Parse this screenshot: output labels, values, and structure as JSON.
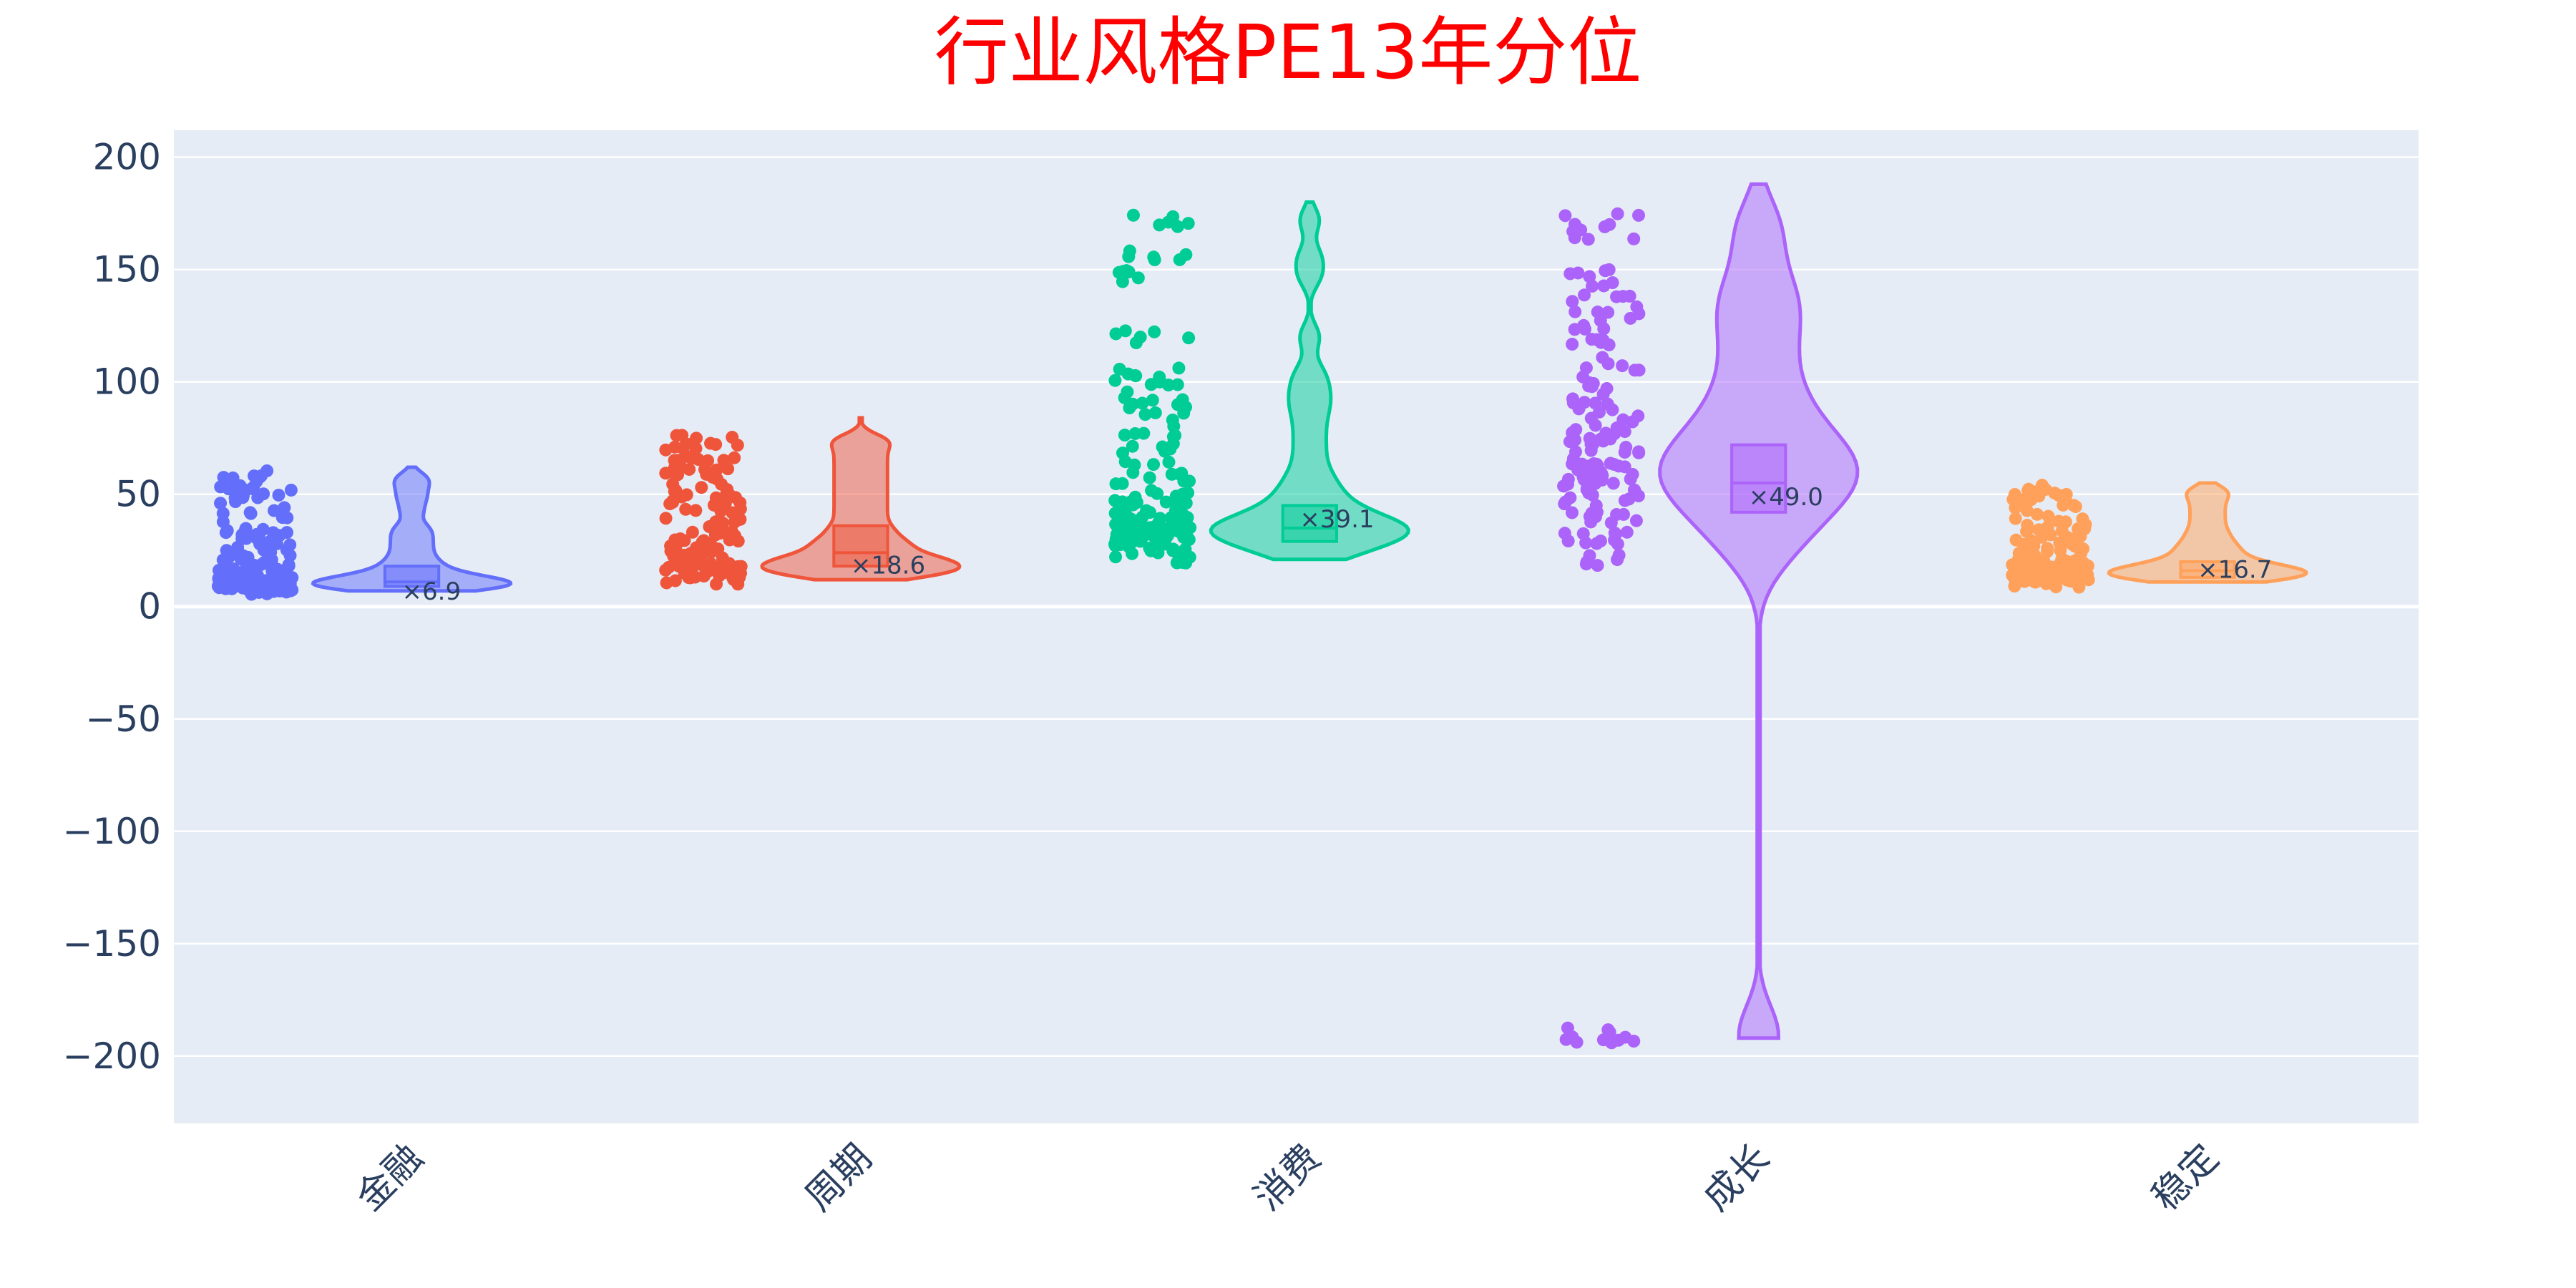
{
  "chart_data": {
    "type": "violin",
    "title": "行业风格PE13年分位",
    "xlabel": "",
    "ylabel": "",
    "ylim": [
      -230,
      212
    ],
    "yticks": [
      200,
      150,
      100,
      50,
      0,
      -50,
      -100,
      -150,
      -200
    ],
    "ytick_labels": [
      "200",
      "150",
      "100",
      "50",
      "0",
      "−50",
      "−100",
      "−150",
      "−200"
    ],
    "grid": true,
    "legend": "none",
    "points_shown": "all",
    "categories": [
      "金融",
      "周期",
      "消费",
      "成长",
      "稳定"
    ],
    "series": [
      {
        "category": "金融",
        "color": "#636efa",
        "annotation": "×6.9",
        "current": 6.9,
        "min": 7,
        "q1": 9,
        "median": 11,
        "q3": 18,
        "max": 62,
        "mean_jitter_values": [
          8,
          8,
          9,
          9,
          9,
          10,
          10,
          10,
          11,
          11,
          12,
          13,
          14,
          15,
          17,
          19,
          21,
          24,
          27,
          30,
          33,
          36,
          42,
          47,
          51,
          55,
          58
        ]
      },
      {
        "category": "周期",
        "color": "#ef553b",
        "annotation": "×18.6",
        "current": 18.6,
        "min": 12,
        "q1": 18,
        "median": 24,
        "q3": 36,
        "max": 84,
        "mean_jitter_values": [
          13,
          14,
          15,
          16,
          17,
          18,
          19,
          20,
          21,
          22,
          24,
          26,
          28,
          30,
          33,
          36,
          40,
          44,
          48,
          52,
          56,
          60,
          64,
          68,
          72,
          75
        ]
      },
      {
        "category": "消费",
        "color": "#00cc96",
        "annotation": "×39.1",
        "current": 39.1,
        "min": 21,
        "q1": 29,
        "median": 35,
        "q3": 45,
        "max": 180,
        "mean_jitter_values": [
          22,
          24,
          26,
          28,
          30,
          31,
          32,
          33,
          34,
          35,
          36,
          37,
          38,
          40,
          42,
          45,
          48,
          52,
          56,
          62,
          70,
          78,
          86,
          92,
          98,
          105,
          120,
          147,
          156,
          172
        ]
      },
      {
        "category": "成长",
        "color": "#ab63fa",
        "annotation": "×49.0",
        "current": 49.0,
        "min": -192,
        "q1": 42,
        "median": 55,
        "q3": 72,
        "max": 188,
        "mean_jitter_values": [
          20,
          28,
          35,
          40,
          44,
          48,
          52,
          55,
          58,
          60,
          62,
          65,
          68,
          72,
          76,
          80,
          86,
          92,
          100,
          108,
          118,
          126,
          133,
          140,
          147,
          166,
          172,
          -190,
          -192
        ]
      },
      {
        "category": "稳定",
        "color": "#ffa15a",
        "annotation": "×16.7",
        "current": 16.7,
        "min": 11,
        "q1": 13,
        "median": 16,
        "q3": 20,
        "max": 55,
        "mean_jitter_values": [
          11,
          12,
          13,
          13,
          14,
          14,
          15,
          15,
          16,
          16,
          17,
          18,
          19,
          20,
          22,
          24,
          26,
          28,
          31,
          34,
          38,
          42,
          46,
          50,
          52
        ]
      }
    ]
  }
}
